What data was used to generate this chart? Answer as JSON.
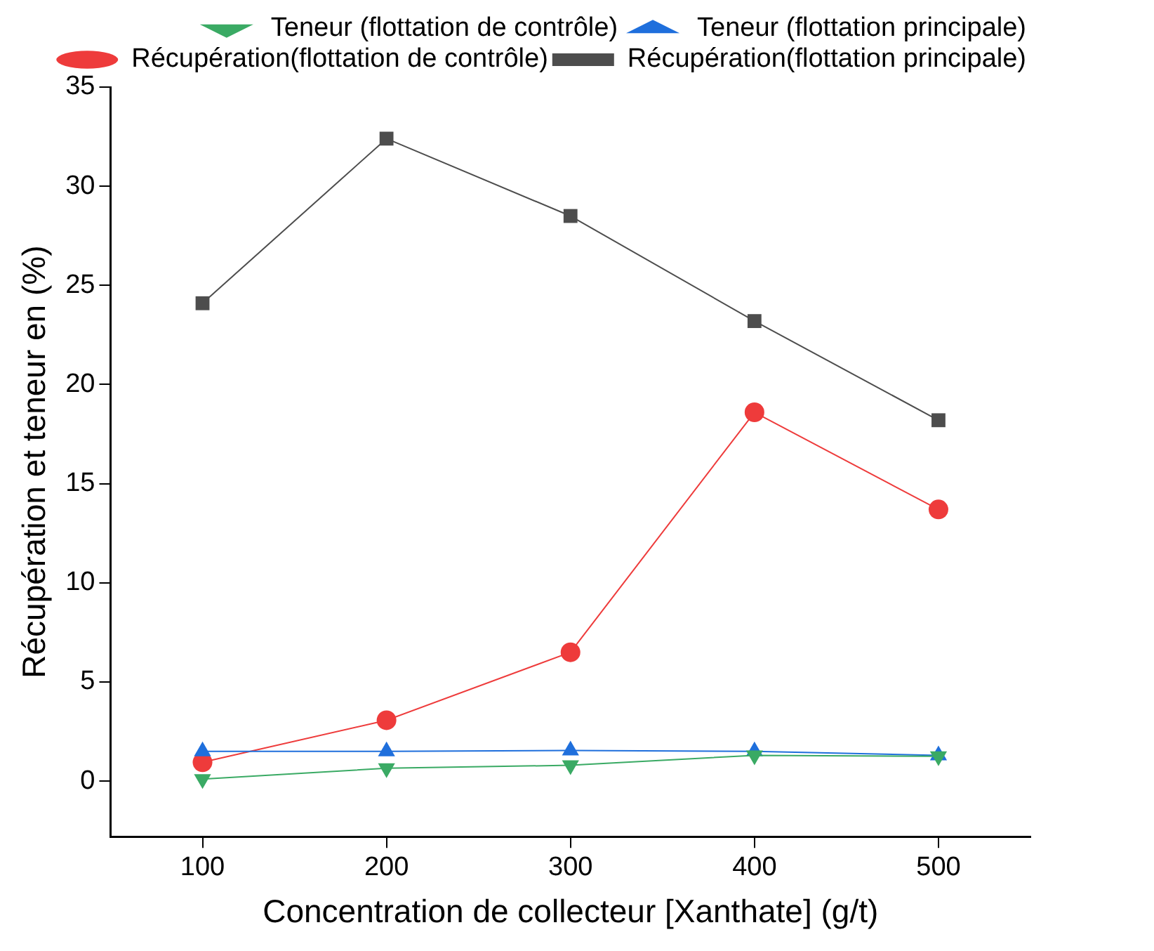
{
  "chart_data": {
    "type": "line",
    "xlabel": "Concentration de collecteur [Xanthate] (g/t)",
    "ylabel": "Récupération et teneur en (%)",
    "x": [
      100,
      200,
      300,
      400,
      500
    ],
    "xlim": [
      50,
      550
    ],
    "xticks": [
      100,
      200,
      300,
      400,
      500
    ],
    "ylim": [
      -2.8,
      35
    ],
    "yticks": [
      0,
      5,
      10,
      15,
      20,
      25,
      30,
      35
    ],
    "grid": false,
    "legend": "top right",
    "series": [
      {
        "name": "Récupération(flottation principale)",
        "color": "#4d4d4d",
        "marker": "square",
        "values": [
          24.1,
          32.4,
          28.5,
          23.2,
          18.2
        ]
      },
      {
        "name": "Récupération(flottation de contrôle)",
        "color": "#ee3b3b",
        "marker": "circle",
        "values": [
          0.95,
          3.07,
          6.5,
          18.6,
          13.7
        ]
      },
      {
        "name": "Teneur (flottation principale)",
        "color": "#1f6fdc",
        "marker": "triangle",
        "values": [
          1.5,
          1.5,
          1.55,
          1.5,
          1.3
        ]
      },
      {
        "name": "Teneur (flottation de contrôle)",
        "color": "#3aaa64",
        "marker": "triangle-down",
        "values": [
          0.1,
          0.65,
          0.8,
          1.3,
          1.25
        ]
      }
    ]
  }
}
